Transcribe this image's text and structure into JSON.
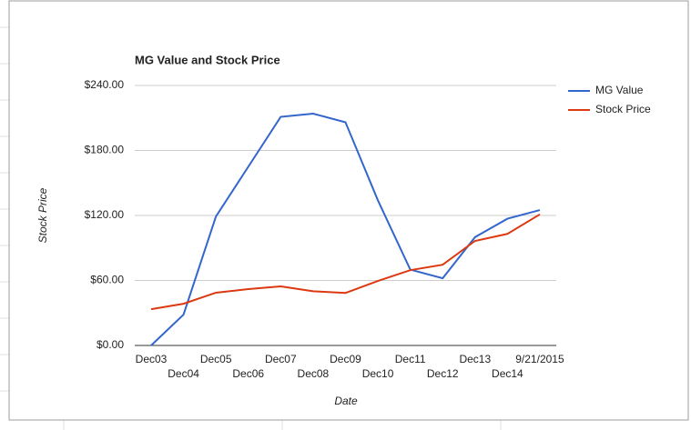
{
  "chart_data": {
    "type": "line",
    "title": "MG Value and Stock Price",
    "x_label": "Date",
    "y_label": "Stock Price",
    "categories": [
      "Dec03",
      "Dec04",
      "Dec05",
      "Dec06",
      "Dec07",
      "Dec08",
      "Dec09",
      "Dec10",
      "Dec11",
      "Dec12",
      "Dec13",
      "Dec14",
      "9/21/2015"
    ],
    "series": [
      {
        "name": "MG Value",
        "color": "#3366cc",
        "values": [
          0,
          28.5,
          119,
          165,
          211,
          214,
          206,
          134,
          70,
          62,
          100,
          117,
          125
        ]
      },
      {
        "name": "Stock Price",
        "color": "#dc3912",
        "values": [
          33.5,
          38.5,
          48.7,
          52,
          54.5,
          50,
          48.5,
          59.5,
          69.5,
          74.5,
          96.5,
          103,
          121
        ]
      }
    ],
    "ylim": [
      0,
      240
    ],
    "yticks": [
      {
        "value": 0,
        "label": "$0.00"
      },
      {
        "value": 60,
        "label": "$60.00"
      },
      {
        "value": 120,
        "label": "$120.00"
      },
      {
        "value": 180,
        "label": "$180.00"
      },
      {
        "value": 240,
        "label": "$240.00"
      }
    ],
    "grid": true,
    "legend": "right"
  }
}
